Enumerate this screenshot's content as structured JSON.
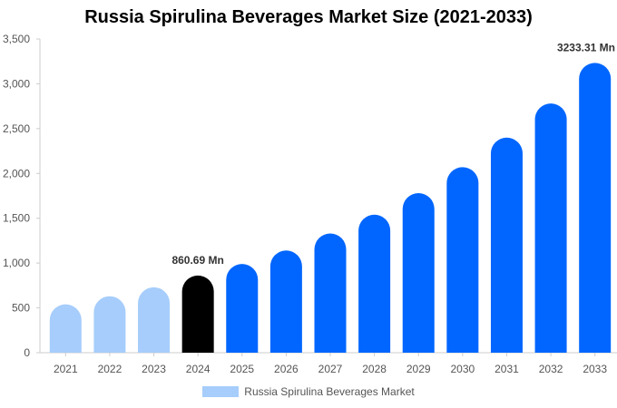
{
  "chart_data": {
    "type": "bar",
    "title": "Russia Spirulina Beverages Market Size (2021-2033)",
    "categories": [
      "2021",
      "2022",
      "2023",
      "2024",
      "2025",
      "2026",
      "2027",
      "2028",
      "2029",
      "2030",
      "2031",
      "2032",
      "2033"
    ],
    "series": [
      {
        "name": "Russia Spirulina Beverages Market",
        "values": [
          540,
          630,
          730,
          860.69,
          990,
          1140,
          1330,
          1540,
          1780,
          2070,
          2400,
          2780,
          3233.31
        ]
      }
    ],
    "ylim": [
      0,
      3500
    ],
    "yticks": [
      0,
      500,
      1000,
      1500,
      2000,
      2500,
      3000,
      3500
    ],
    "ytick_labels": [
      "0",
      "500",
      "1,000",
      "1,500",
      "2,000",
      "2,500",
      "3,000",
      "3,500"
    ],
    "annotations": [
      {
        "category": "2024",
        "text": "860.69 Mn"
      },
      {
        "category": "2033",
        "text": "3233.31 Mn"
      }
    ],
    "highlight_category": "2024",
    "colors": {
      "historical": "#a6cdfb",
      "highlight": "#000000",
      "forecast": "#0066ff"
    },
    "historical_categories": [
      "2021",
      "2022",
      "2023"
    ],
    "grid": false,
    "legend_position": "bottom"
  }
}
